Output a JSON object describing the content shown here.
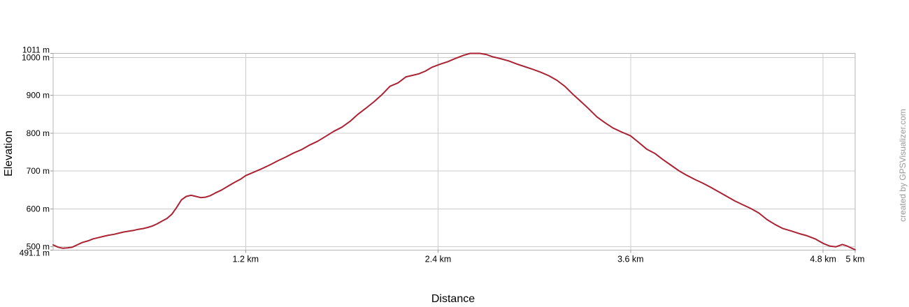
{
  "chart_data": {
    "type": "line",
    "title": "",
    "xlabel": "Distance",
    "ylabel": "Elevation",
    "watermark": "created by GPSVisualizer.com",
    "x_unit": "km",
    "y_unit": "m",
    "xlim": [
      0,
      5
    ],
    "ylim": [
      491.1,
      1011
    ],
    "grid": true,
    "legend": null,
    "colors": {
      "line": "#aa2233",
      "grid": "#cccccc",
      "frame": "#b5b5b5",
      "tick": "#999999",
      "text": "#000000",
      "watermark": "#999999"
    },
    "x_ticks": [
      {
        "value": 1.2,
        "label": "1.2 km",
        "grid": true
      },
      {
        "value": 2.4,
        "label": "2.4 km",
        "grid": true
      },
      {
        "value": 3.6,
        "label": "3.6 km",
        "grid": true
      },
      {
        "value": 4.8,
        "label": "4.8 km",
        "grid": true
      },
      {
        "value": 5.0,
        "label": "5 km",
        "grid": false
      }
    ],
    "y_ticks": [
      {
        "value": 1011,
        "label": "1011 m",
        "grid": false
      },
      {
        "value": 1000,
        "label": "1000 m",
        "grid": true
      },
      {
        "value": 900,
        "label": "900 m",
        "grid": true
      },
      {
        "value": 800,
        "label": "800 m",
        "grid": true
      },
      {
        "value": 700,
        "label": "700 m",
        "grid": true
      },
      {
        "value": 600,
        "label": "600 m",
        "grid": true
      },
      {
        "value": 500,
        "label": "500 m",
        "grid": true
      },
      {
        "value": 491.1,
        "label": "491.1 m",
        "grid": false
      }
    ],
    "series": [
      {
        "name": "elevation-profile",
        "points": [
          [
            0,
            505
          ],
          [
            0.03,
            499
          ],
          [
            0.06,
            496
          ],
          [
            0.09,
            497
          ],
          [
            0.12,
            499
          ],
          [
            0.15,
            505
          ],
          [
            0.18,
            511
          ],
          [
            0.22,
            516
          ],
          [
            0.25,
            521
          ],
          [
            0.28,
            524
          ],
          [
            0.31,
            527
          ],
          [
            0.34,
            530
          ],
          [
            0.38,
            533
          ],
          [
            0.41,
            536
          ],
          [
            0.44,
            539
          ],
          [
            0.47,
            541
          ],
          [
            0.5,
            543
          ],
          [
            0.53,
            546
          ],
          [
            0.56,
            548
          ],
          [
            0.59,
            551
          ],
          [
            0.62,
            555
          ],
          [
            0.65,
            561
          ],
          [
            0.68,
            568
          ],
          [
            0.71,
            575
          ],
          [
            0.74,
            586
          ],
          [
            0.77,
            604
          ],
          [
            0.8,
            624
          ],
          [
            0.83,
            633
          ],
          [
            0.86,
            636
          ],
          [
            0.89,
            633
          ],
          [
            0.92,
            630
          ],
          [
            0.95,
            631
          ],
          [
            0.98,
            635
          ],
          [
            1.01,
            642
          ],
          [
            1.05,
            650
          ],
          [
            1.09,
            660
          ],
          [
            1.13,
            670
          ],
          [
            1.17,
            679
          ],
          [
            1.2,
            688
          ],
          [
            1.25,
            697
          ],
          [
            1.3,
            706
          ],
          [
            1.35,
            716
          ],
          [
            1.4,
            727
          ],
          [
            1.45,
            737
          ],
          [
            1.5,
            748
          ],
          [
            1.55,
            757
          ],
          [
            1.6,
            769
          ],
          [
            1.65,
            779
          ],
          [
            1.7,
            792
          ],
          [
            1.75,
            805
          ],
          [
            1.8,
            816
          ],
          [
            1.85,
            831
          ],
          [
            1.9,
            850
          ],
          [
            1.95,
            866
          ],
          [
            2.0,
            883
          ],
          [
            2.05,
            902
          ],
          [
            2.1,
            924
          ],
          [
            2.15,
            933
          ],
          [
            2.2,
            949
          ],
          [
            2.24,
            953
          ],
          [
            2.28,
            957
          ],
          [
            2.32,
            964
          ],
          [
            2.36,
            974
          ],
          [
            2.41,
            982
          ],
          [
            2.46,
            989
          ],
          [
            2.51,
            998
          ],
          [
            2.56,
            1006
          ],
          [
            2.6,
            1011
          ],
          [
            2.66,
            1011
          ],
          [
            2.7,
            1008
          ],
          [
            2.74,
            1002
          ],
          [
            2.79,
            997
          ],
          [
            2.84,
            991
          ],
          [
            2.89,
            983
          ],
          [
            2.94,
            976
          ],
          [
            2.99,
            969
          ],
          [
            3.04,
            961
          ],
          [
            3.09,
            952
          ],
          [
            3.14,
            940
          ],
          [
            3.19,
            924
          ],
          [
            3.24,
            903
          ],
          [
            3.29,
            884
          ],
          [
            3.34,
            864
          ],
          [
            3.39,
            843
          ],
          [
            3.44,
            828
          ],
          [
            3.49,
            814
          ],
          [
            3.54,
            804
          ],
          [
            3.6,
            793
          ],
          [
            3.65,
            776
          ],
          [
            3.7,
            758
          ],
          [
            3.75,
            747
          ],
          [
            3.8,
            731
          ],
          [
            3.85,
            716
          ],
          [
            3.9,
            701
          ],
          [
            3.95,
            689
          ],
          [
            4.0,
            678
          ],
          [
            4.05,
            668
          ],
          [
            4.1,
            657
          ],
          [
            4.15,
            645
          ],
          [
            4.2,
            633
          ],
          [
            4.25,
            621
          ],
          [
            4.3,
            611
          ],
          [
            4.35,
            601
          ],
          [
            4.4,
            589
          ],
          [
            4.45,
            572
          ],
          [
            4.5,
            559
          ],
          [
            4.55,
            548
          ],
          [
            4.6,
            542
          ],
          [
            4.65,
            535
          ],
          [
            4.7,
            529
          ],
          [
            4.75,
            521
          ],
          [
            4.8,
            509
          ],
          [
            4.84,
            502
          ],
          [
            4.88,
            500
          ],
          [
            4.92,
            506
          ],
          [
            4.95,
            502
          ],
          [
            4.98,
            496
          ],
          [
            5.0,
            492
          ]
        ]
      }
    ]
  }
}
